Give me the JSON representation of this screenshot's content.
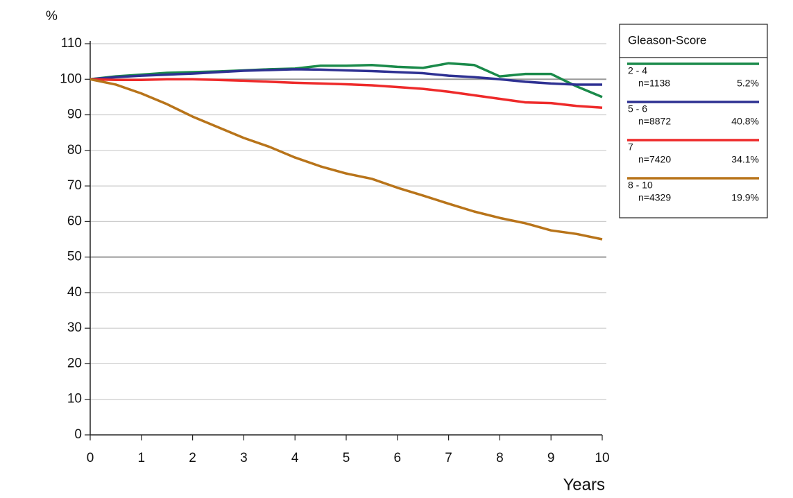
{
  "chart_data": {
    "type": "line",
    "ylabel": "%",
    "xlabel": "Years",
    "legend_title": "Gleason-Score",
    "x": [
      0,
      0.5,
      1,
      1.5,
      2,
      2.5,
      3,
      3.5,
      4,
      4.5,
      5,
      5.5,
      6,
      6.5,
      7,
      7.5,
      8,
      8.5,
      9,
      9.5,
      10
    ],
    "series": [
      {
        "name": "2 - 4",
        "n": "n=1138",
        "share": "5.2%",
        "color": "#1a8a4a",
        "values": [
          100,
          100.8,
          101.3,
          101.8,
          102,
          102.2,
          102.5,
          102.8,
          103,
          103.8,
          103.8,
          104,
          103.5,
          103.2,
          104.5,
          104,
          100.8,
          101.5,
          101.5,
          98,
          95
        ]
      },
      {
        "name": "5 - 6",
        "n": "n=8872",
        "share": "40.8%",
        "color": "#2e3192",
        "values": [
          100,
          100.6,
          101,
          101.3,
          101.6,
          102,
          102.4,
          102.6,
          102.8,
          102.7,
          102.5,
          102.3,
          102,
          101.7,
          101,
          100.6,
          100,
          99.3,
          98.8,
          98.5,
          98.5
        ]
      },
      {
        "name": "7",
        "n": "n=7420",
        "share": "34.1%",
        "color": "#ee2a2a",
        "values": [
          100,
          99.8,
          99.8,
          100,
          100,
          99.8,
          99.6,
          99.3,
          99,
          98.8,
          98.6,
          98.3,
          97.8,
          97.3,
          96.5,
          95.5,
          94.5,
          93.5,
          93.3,
          92.5,
          92
        ]
      },
      {
        "name": "8 - 10",
        "n": "n=4329",
        "share": "19.9%",
        "color": "#b8741a",
        "values": [
          100,
          98.5,
          96,
          93,
          89.5,
          86.5,
          83.5,
          81,
          78,
          75.5,
          73.5,
          72,
          69.5,
          67.3,
          65,
          62.8,
          61,
          59.5,
          57.5,
          56.5,
          55
        ]
      }
    ],
    "xlim": [
      0,
      10
    ],
    "xticks": [
      0,
      1,
      2,
      3,
      4,
      5,
      6,
      7,
      8,
      9,
      10
    ],
    "ylim": [
      0,
      110
    ],
    "yticks": [
      0,
      10,
      20,
      30,
      40,
      50,
      60,
      70,
      80,
      90,
      100,
      110
    ],
    "grid": true
  }
}
